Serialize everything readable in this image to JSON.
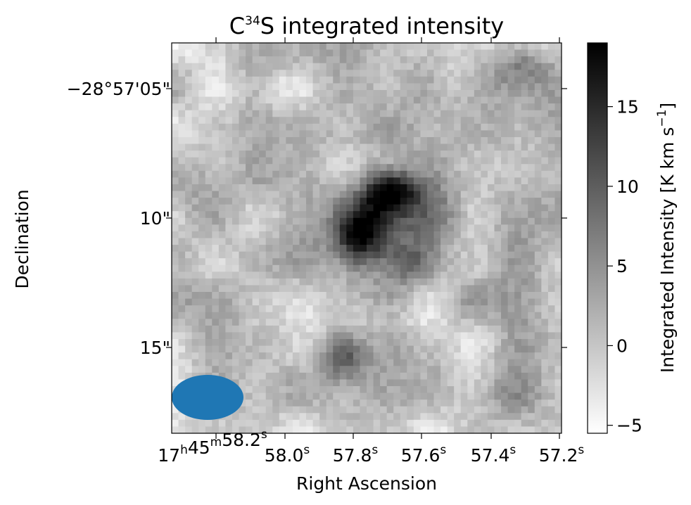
{
  "chart_data": {
    "type": "heatmap",
    "title": {
      "prefix": "C",
      "superscript": "34",
      "suffix": "S integrated intensity"
    },
    "xlabel": "Right Ascension",
    "ylabel": "Declination",
    "colormap": "gray_r",
    "grid": false,
    "x_ticks": [
      {
        "h": "17",
        "m": "45",
        "s": "58.2",
        "s_sup": "s",
        "full": true
      },
      {
        "s": "58.0",
        "s_sup": "s"
      },
      {
        "s": "57.8",
        "s_sup": "s"
      },
      {
        "s": "57.6",
        "s_sup": "s"
      },
      {
        "s": "57.4",
        "s_sup": "s"
      },
      {
        "s": "57.2",
        "s_sup": "s"
      }
    ],
    "y_ticks": [
      "−28°57'05\"",
      "10\"",
      "15\""
    ],
    "colorbar": {
      "label": "Integrated Intensity [K km s",
      "label_sup": "−1",
      "label_end": "]",
      "range": [
        -5.5,
        19
      ],
      "ticks": [
        {
          "value": 15,
          "label": "15"
        },
        {
          "value": 10,
          "label": "10"
        },
        {
          "value": 5,
          "label": "5"
        },
        {
          "value": 0,
          "label": "0"
        },
        {
          "value": -5,
          "label": "−5"
        }
      ]
    },
    "beam": {
      "color": "#1f77b4"
    },
    "intensity_features": [
      {
        "region": "central core (upper)",
        "peak_K_km_s": 19
      },
      {
        "region": "central core (lower)",
        "peak_K_km_s": 18
      },
      {
        "region": "extended envelope",
        "level_K_km_s": 9
      },
      {
        "region": "background",
        "level_K_km_s": 0
      }
    ]
  }
}
